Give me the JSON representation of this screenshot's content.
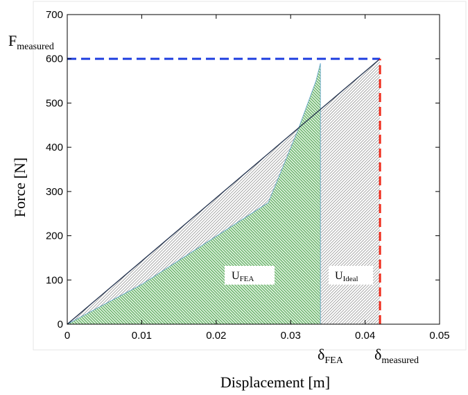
{
  "chart_data": {
    "type": "area",
    "xlabel": "Displacement [m]",
    "ylabel": "Force [N]",
    "xlim": [
      0,
      0.05
    ],
    "ylim": [
      0,
      700
    ],
    "xticks": [
      "0",
      "0.01",
      "0.02",
      "0.03",
      "0.04",
      "0.05"
    ],
    "yticks": [
      "0",
      "100",
      "200",
      "300",
      "400",
      "500",
      "600",
      "700"
    ],
    "grid": false,
    "series": [
      {
        "role": "ideal",
        "style": "gray hatched fill, dark line",
        "x": [
          0,
          0.042
        ],
        "y": [
          0,
          600
        ]
      },
      {
        "role": "fea",
        "style": "green hatched fill",
        "x": [
          0,
          0.01,
          0.027,
          0.031,
          0.0334,
          0.034,
          0.034
        ],
        "y": [
          0,
          90,
          275,
          440,
          550,
          590,
          0
        ]
      }
    ],
    "reference_lines": [
      {
        "orientation": "horizontal",
        "value": 600,
        "x_from": 0,
        "x_to": 0.042,
        "color": "#1f3fe0",
        "style": "dashed"
      },
      {
        "orientation": "vertical",
        "value": 0.042,
        "y_from": 0,
        "y_to": 600,
        "color": "#ee2a1a",
        "style": "dashed"
      }
    ],
    "annotations": {
      "f_measured": {
        "base": "F",
        "sub": "measured"
      },
      "delta_fea": {
        "base": "δ",
        "sub": "FEA"
      },
      "delta_measured": {
        "base": "δ",
        "sub": "measured"
      },
      "u_fea": {
        "base": "U",
        "sub": "FEA"
      },
      "u_ideal": {
        "base": "U",
        "sub": "Ideal"
      }
    },
    "colors": {
      "fea_fill": "#2f8f2f",
      "ideal_fill": "#7a7a7a",
      "ideal_line": "#1e2e4a"
    }
  }
}
